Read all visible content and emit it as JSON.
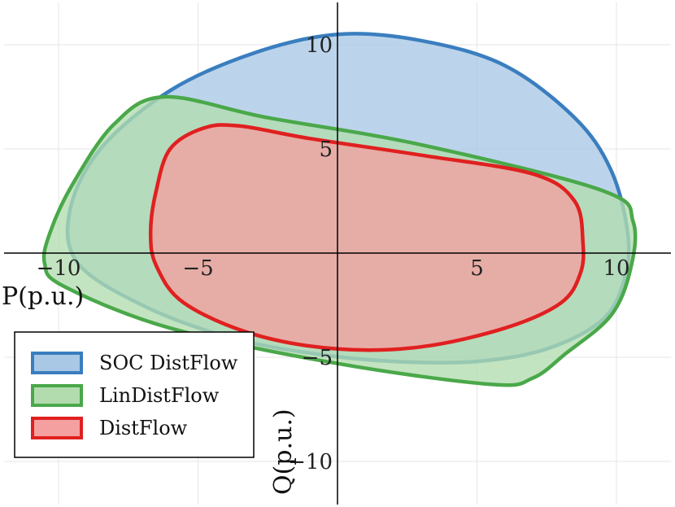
{
  "chart_data": {
    "type": "area",
    "xlabel": "P(p.u.)",
    "ylabel": "Q(p.u.)",
    "xlim": [
      -12,
      12
    ],
    "ylim": [
      -12,
      12
    ],
    "xticks": [
      -10,
      -5,
      5,
      10
    ],
    "yticks": [
      -10,
      -5,
      5,
      10
    ],
    "xtick_labels": [
      "−10",
      "−5",
      "5",
      "10"
    ],
    "ytick_labels": [
      "−10",
      "−5",
      "5",
      "10"
    ],
    "grid": true,
    "legend_position": "bottom-left",
    "series": [
      {
        "name": "SOC DistFlow",
        "color": "#3a7ebf",
        "fill": "#a9c8e6",
        "points": [
          [
            0,
            10.5
          ],
          [
            3,
            10.2
          ],
          [
            6,
            9.0
          ],
          [
            8.5,
            6.5
          ],
          [
            9.8,
            4.0
          ],
          [
            10.4,
            1.0
          ],
          [
            10.3,
            -1.2
          ],
          [
            9.5,
            -3.2
          ],
          [
            7.5,
            -4.6
          ],
          [
            5,
            -5.2
          ],
          [
            2,
            -5.2
          ],
          [
            -1,
            -4.8
          ],
          [
            -4,
            -4.0
          ],
          [
            -7,
            -2.5
          ],
          [
            -9.3,
            -0.5
          ],
          [
            -9.6,
            2.0
          ],
          [
            -8.5,
            5.0
          ],
          [
            -6,
            7.8
          ],
          [
            -3,
            9.6
          ]
        ]
      },
      {
        "name": "LinDistFlow",
        "color": "#4aa84a",
        "fill": "#b2dcae",
        "points": [
          [
            -6.2,
            7.5
          ],
          [
            -2.5,
            6.5
          ],
          [
            3,
            5.2
          ],
          [
            9.5,
            3.0
          ],
          [
            10.6,
            1.5
          ],
          [
            10.5,
            -0.8
          ],
          [
            9.8,
            -3.0
          ],
          [
            8.2,
            -4.8
          ],
          [
            7.0,
            -6.0
          ],
          [
            5.5,
            -6.3
          ],
          [
            0,
            -5.3
          ],
          [
            -6,
            -3.6
          ],
          [
            -9.8,
            -1.6
          ],
          [
            -10.5,
            -0.5
          ],
          [
            -10.3,
            1.0
          ],
          [
            -9.5,
            3.3
          ],
          [
            -8.0,
            6.2
          ]
        ]
      },
      {
        "name": "DistFlow",
        "color": "#e02020",
        "fill": "#f4a0a0",
        "points": [
          [
            -3.5,
            6.1
          ],
          [
            -1,
            5.5
          ],
          [
            3,
            4.7
          ],
          [
            7,
            3.8
          ],
          [
            8.5,
            2.5
          ],
          [
            8.8,
            0.5
          ],
          [
            8.7,
            -1.0
          ],
          [
            8.0,
            -2.4
          ],
          [
            6.0,
            -3.6
          ],
          [
            3,
            -4.5
          ],
          [
            0,
            -4.6
          ],
          [
            -3,
            -3.9
          ],
          [
            -5.5,
            -2.4
          ],
          [
            -6.5,
            -0.6
          ],
          [
            -6.7,
            1.0
          ],
          [
            -6.5,
            3.0
          ],
          [
            -6.0,
            5.0
          ],
          [
            -4.8,
            6.0
          ]
        ]
      }
    ]
  }
}
